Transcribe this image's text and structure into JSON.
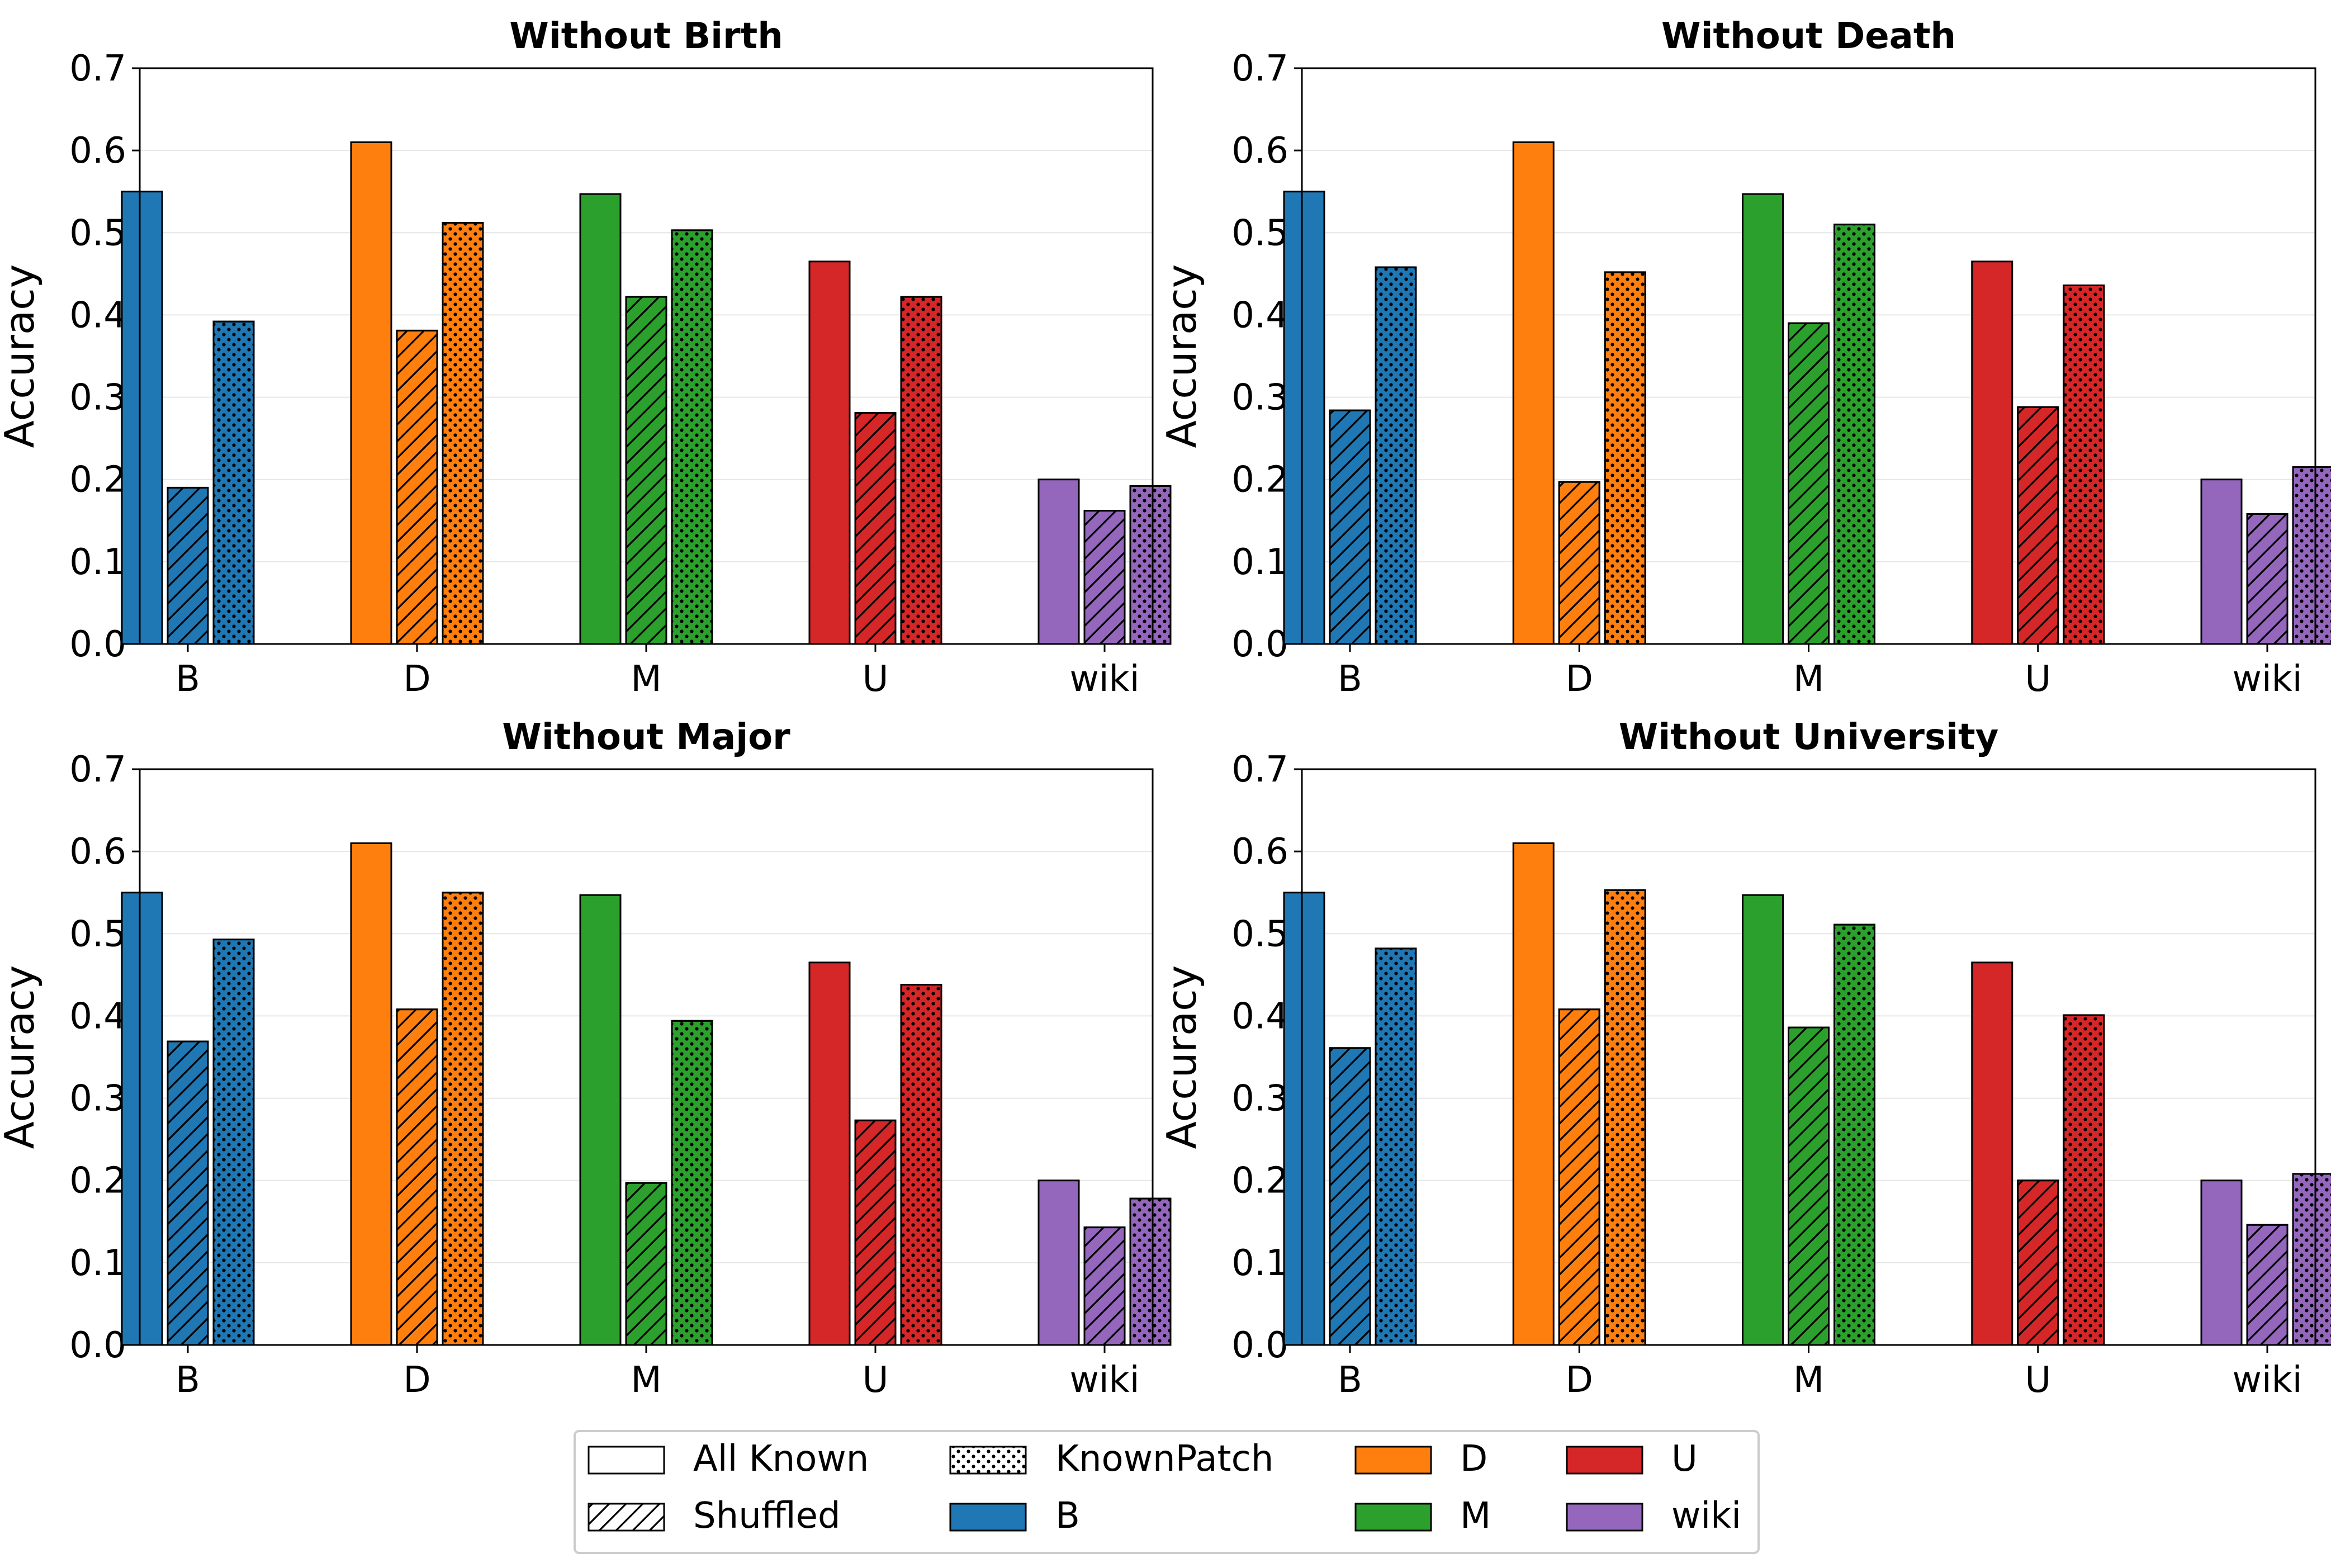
{
  "chart_data": [
    {
      "type": "bar",
      "title": "Without Birth",
      "xlabel": "",
      "ylabel": "Accuracy",
      "ylim": [
        0,
        0.7
      ],
      "yticks": [
        "0.0",
        "0.1",
        "0.2",
        "0.3",
        "0.4",
        "0.5",
        "0.6",
        "0.7"
      ],
      "categories": [
        "B",
        "D",
        "M",
        "U",
        "wiki"
      ],
      "series": [
        {
          "name": "All Known",
          "values": [
            0.55,
            0.61,
            0.547,
            0.465,
            0.2
          ]
        },
        {
          "name": "Shuffled",
          "values": [
            0.19,
            0.381,
            0.422,
            0.281,
            0.162
          ]
        },
        {
          "name": "KnownPatch",
          "values": [
            0.392,
            0.512,
            0.503,
            0.422,
            0.192
          ]
        }
      ]
    },
    {
      "type": "bar",
      "title": "Without Death",
      "xlabel": "",
      "ylabel": "Accuracy",
      "ylim": [
        0,
        0.7
      ],
      "yticks": [
        "0.0",
        "0.1",
        "0.2",
        "0.3",
        "0.4",
        "0.5",
        "0.6",
        "0.7"
      ],
      "categories": [
        "B",
        "D",
        "M",
        "U",
        "wiki"
      ],
      "series": [
        {
          "name": "All Known",
          "values": [
            0.55,
            0.61,
            0.547,
            0.465,
            0.2
          ]
        },
        {
          "name": "Shuffled",
          "values": [
            0.284,
            0.197,
            0.39,
            0.288,
            0.158
          ]
        },
        {
          "name": "KnownPatch",
          "values": [
            0.458,
            0.452,
            0.51,
            0.436,
            0.215
          ]
        }
      ]
    },
    {
      "type": "bar",
      "title": "Without Major",
      "xlabel": "",
      "ylabel": "Accuracy",
      "ylim": [
        0,
        0.7
      ],
      "yticks": [
        "0.0",
        "0.1",
        "0.2",
        "0.3",
        "0.4",
        "0.5",
        "0.6",
        "0.7"
      ],
      "categories": [
        "B",
        "D",
        "M",
        "U",
        "wiki"
      ],
      "series": [
        {
          "name": "All Known",
          "values": [
            0.55,
            0.61,
            0.547,
            0.465,
            0.2
          ]
        },
        {
          "name": "Shuffled",
          "values": [
            0.369,
            0.408,
            0.197,
            0.273,
            0.143
          ]
        },
        {
          "name": "KnownPatch",
          "values": [
            0.493,
            0.55,
            0.394,
            0.438,
            0.178
          ]
        }
      ]
    },
    {
      "type": "bar",
      "title": "Without University",
      "xlabel": "",
      "ylabel": "Accuracy",
      "ylim": [
        0,
        0.7
      ],
      "yticks": [
        "0.0",
        "0.1",
        "0.2",
        "0.3",
        "0.4",
        "0.5",
        "0.6",
        "0.7"
      ],
      "categories": [
        "B",
        "D",
        "M",
        "U",
        "wiki"
      ],
      "series": [
        {
          "name": "All Known",
          "values": [
            0.55,
            0.61,
            0.547,
            0.465,
            0.2
          ]
        },
        {
          "name": "Shuffled",
          "values": [
            0.361,
            0.408,
            0.386,
            0.2,
            0.146
          ]
        },
        {
          "name": "KnownPatch",
          "values": [
            0.482,
            0.553,
            0.511,
            0.401,
            0.208
          ]
        }
      ]
    }
  ],
  "colors": {
    "B": "#1f77b4",
    "D": "#ff7f0e",
    "M": "#2ca02c",
    "U": "#d62728",
    "wiki": "#9467bd"
  },
  "legend": {
    "position": "bottom-center",
    "entries": [
      {
        "label": "All Known",
        "kind": "pattern",
        "pattern": "none"
      },
      {
        "label": "Shuffled",
        "kind": "pattern",
        "pattern": "hatch"
      },
      {
        "label": "KnownPatch",
        "kind": "pattern",
        "pattern": "dots"
      },
      {
        "label": "B",
        "kind": "color",
        "color": "#1f77b4"
      },
      {
        "label": "D",
        "kind": "color",
        "color": "#ff7f0e"
      },
      {
        "label": "M",
        "kind": "color",
        "color": "#2ca02c"
      },
      {
        "label": "U",
        "kind": "color",
        "color": "#d62728"
      },
      {
        "label": "wiki",
        "kind": "color",
        "color": "#9467bd"
      }
    ]
  }
}
